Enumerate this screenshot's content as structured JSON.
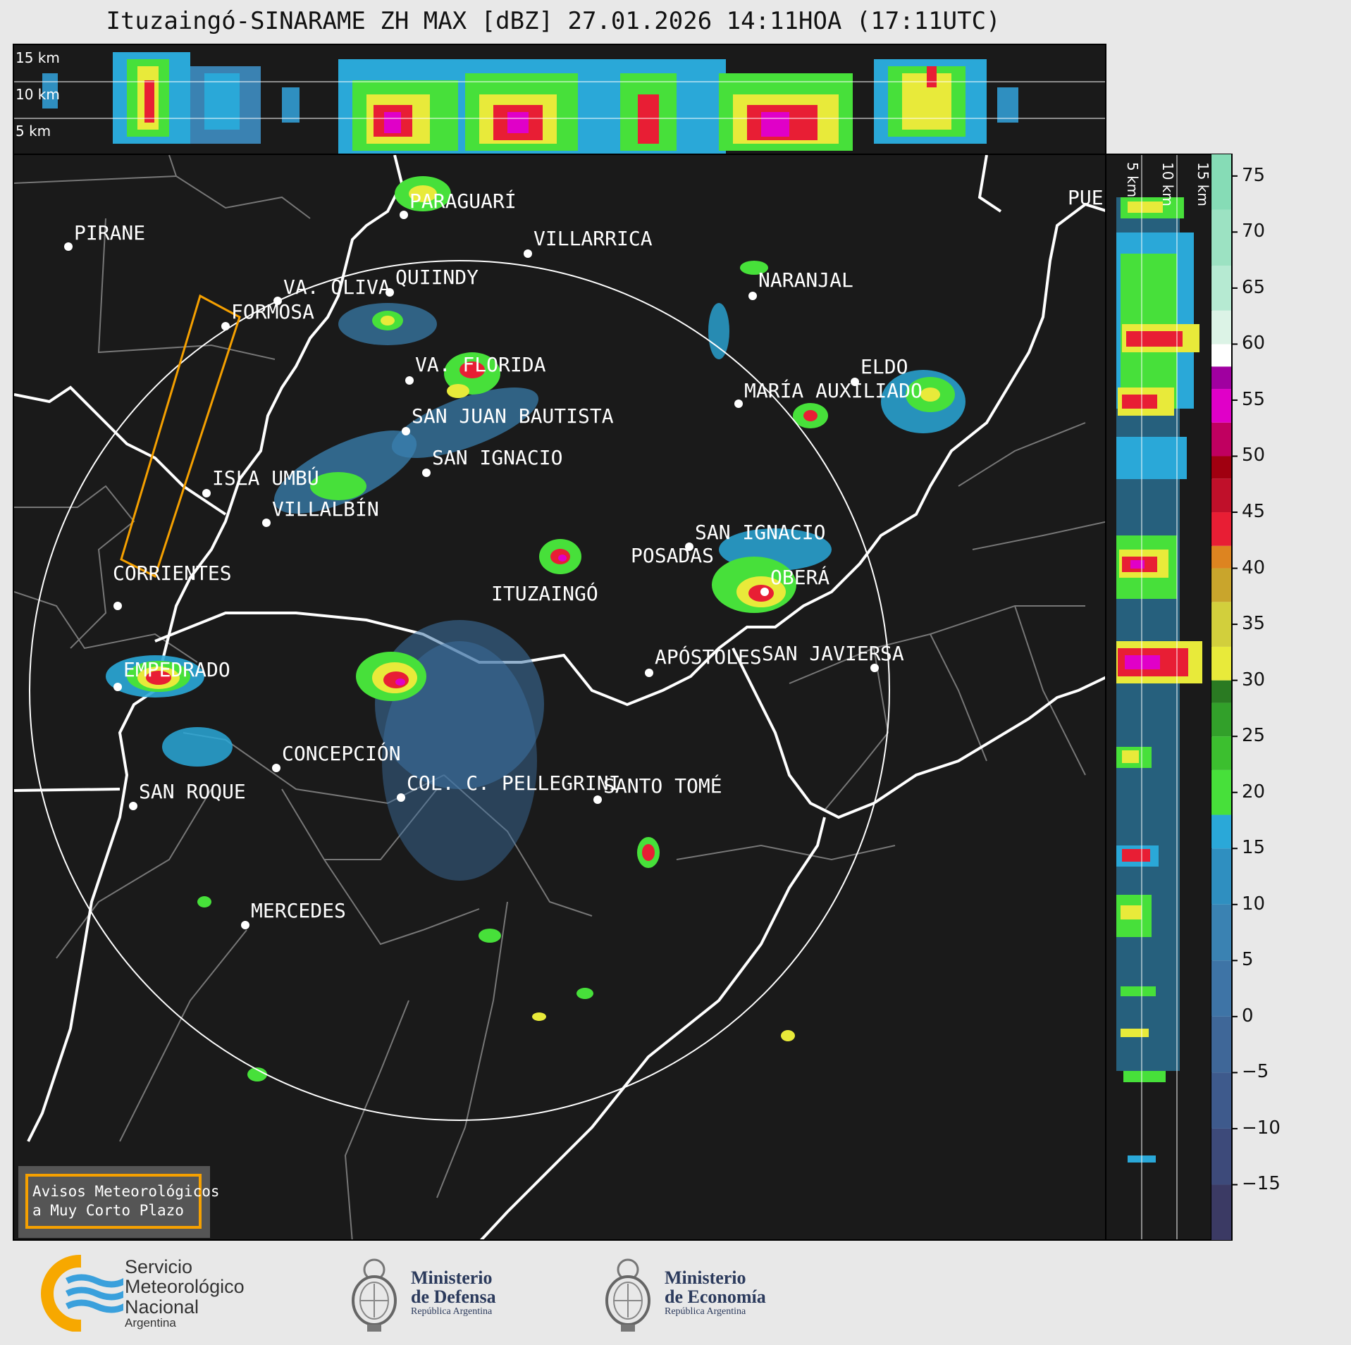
{
  "title": "Ituzaingó-SINARAME ZH MAX [dBZ] 27.01.2026 14:11HOA (17:11UTC)",
  "top_panel": {
    "height_labels": [
      "15 km",
      "10 km",
      "5 km"
    ]
  },
  "right_panel": {
    "height_labels": [
      "5 km",
      "10 km",
      "15 km"
    ]
  },
  "map": {
    "places": [
      {
        "id": "pirane",
        "label": "PIRANE"
      },
      {
        "id": "paraguari",
        "label": "PARAGUARÍ"
      },
      {
        "id": "villarrica",
        "label": "VILLARRICA"
      },
      {
        "id": "quiindy",
        "label": "QUIINDY"
      },
      {
        "id": "va_oliva",
        "label": "VA. OLIVA"
      },
      {
        "id": "formosa",
        "label": "FORMOSA"
      },
      {
        "id": "naranjal",
        "label": "NARANJAL"
      },
      {
        "id": "pue",
        "label": "PUE"
      },
      {
        "id": "va_florida",
        "label": "VA. FLORIDA"
      },
      {
        "id": "eldo",
        "label": "ELDO"
      },
      {
        "id": "maria_auxiliadora",
        "label": "MARÍA AUXILIADO"
      },
      {
        "id": "san_juan_bautista",
        "label": "SAN JUAN BAUTISTA"
      },
      {
        "id": "san_ignacio_py",
        "label": "SAN IGNACIO"
      },
      {
        "id": "isla_umbu",
        "label": "ISLA UMBÚ"
      },
      {
        "id": "villalbin",
        "label": "VILLALBÍN"
      },
      {
        "id": "san_ignacio_ar",
        "label": "SAN IGNACIO"
      },
      {
        "id": "posadas",
        "label": "POSADAS"
      },
      {
        "id": "corrientes",
        "label": "CORRIENTES"
      },
      {
        "id": "ituzaingo",
        "label": "ITUZAINGÓ"
      },
      {
        "id": "obera",
        "label": "OBERÁ"
      },
      {
        "id": "empedrado",
        "label": "EMPEDRADO"
      },
      {
        "id": "apostoles",
        "label": "APÓSTOLES"
      },
      {
        "id": "san_javier",
        "label": "SAN JAVIER"
      },
      {
        "id": "sa",
        "label": "SA"
      },
      {
        "id": "concepcion",
        "label": "CONCEPCIÓN"
      },
      {
        "id": "col_pellegrini",
        "label": "COL. C. PELLEGRINI"
      },
      {
        "id": "santo_tome",
        "label": "SANTO TOMÉ"
      },
      {
        "id": "san_roque",
        "label": "SAN ROQUE"
      },
      {
        "id": "mercedes",
        "label": "MERCEDES"
      }
    ],
    "warning_box": {
      "line1": "Avisos Meteorológicos",
      "line2": "a Muy Corto Plazo"
    },
    "colors": {
      "background": "#1a1a1a",
      "warning_polygon": "#f5a000",
      "range_ring": "#ffffff"
    }
  },
  "colorbar": {
    "ticks": [
      "75",
      "70",
      "65",
      "60",
      "55",
      "50",
      "45",
      "40",
      "35",
      "30",
      "25",
      "20",
      "15",
      "10",
      "5",
      "0",
      "−5",
      "−10",
      "−15"
    ],
    "range": [
      -20,
      77
    ],
    "stops": [
      {
        "from": -20,
        "color": "#3b3a64"
      },
      {
        "from": -15,
        "color": "#3d4a7a"
      },
      {
        "from": -10,
        "color": "#3e5a8c"
      },
      {
        "from": -5,
        "color": "#3f6798"
      },
      {
        "from": 0,
        "color": "#3e74a6"
      },
      {
        "from": 5,
        "color": "#3a82b2"
      },
      {
        "from": 10,
        "color": "#2f8fc0"
      },
      {
        "from": 15,
        "color": "#2aa8d8"
      },
      {
        "from": 18,
        "color": "#47e03a"
      },
      {
        "from": 22,
        "color": "#3cbf2f"
      },
      {
        "from": 25,
        "color": "#32a02a"
      },
      {
        "from": 28,
        "color": "#2a7a22"
      },
      {
        "from": 30,
        "color": "#e8ea3a"
      },
      {
        "from": 33,
        "color": "#d2cf3c"
      },
      {
        "from": 37,
        "color": "#c9a52c"
      },
      {
        "from": 40,
        "color": "#dd8420"
      },
      {
        "from": 42,
        "color": "#e81e34"
      },
      {
        "from": 45,
        "color": "#c0102a"
      },
      {
        "from": 48,
        "color": "#a00010"
      },
      {
        "from": 50,
        "color": "#c00060"
      },
      {
        "from": 53,
        "color": "#e000c8"
      },
      {
        "from": 56,
        "color": "#a000a0"
      },
      {
        "from": 58,
        "color": "#ffffff"
      },
      {
        "from": 60,
        "color": "#dcf3e6"
      },
      {
        "from": 63,
        "color": "#b6ead2"
      },
      {
        "from": 67,
        "color": "#9ce2c2"
      },
      {
        "from": 72,
        "color": "#86dcb6"
      }
    ]
  },
  "footer": {
    "smn": {
      "line1": "Servicio",
      "line2": "Meteorológico",
      "line3": "Nacional",
      "line4": "Argentina"
    },
    "defensa": {
      "line1": "Ministerio",
      "line2": "de Defensa",
      "line3": "República Argentina"
    },
    "economia": {
      "line1": "Ministerio",
      "line2": "de Economía",
      "line3": "República Argentina"
    }
  }
}
